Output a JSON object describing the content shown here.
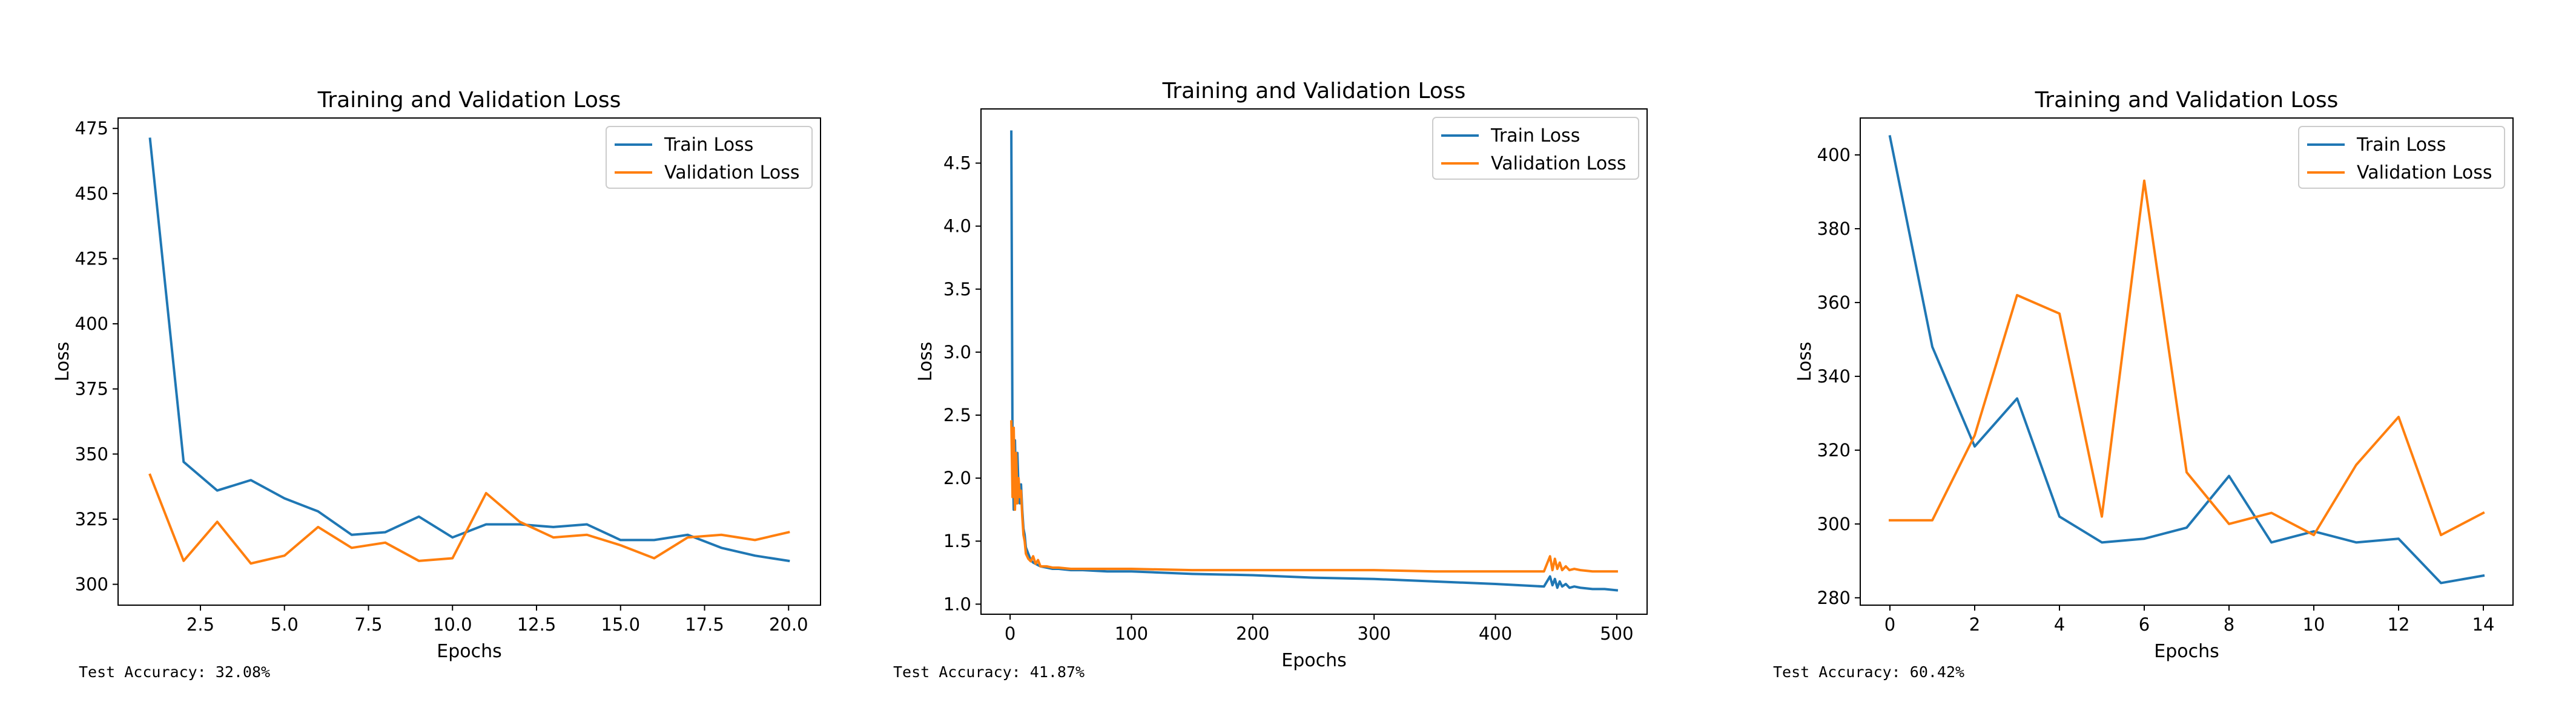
{
  "chart_data": [
    {
      "type": "line",
      "title": "Training and Validation Loss",
      "xlabel": "Epochs",
      "ylabel": "Loss",
      "xlim": [
        0.05,
        20.95
      ],
      "ylim": [
        292,
        479
      ],
      "xticks": [
        2.5,
        5.0,
        7.5,
        10.0,
        12.5,
        15.0,
        17.5,
        20.0
      ],
      "xtick_labels": [
        "2.5",
        "5.0",
        "7.5",
        "10.0",
        "12.5",
        "15.0",
        "17.5",
        "20.0"
      ],
      "yticks": [
        300,
        325,
        350,
        375,
        400,
        425,
        450,
        475
      ],
      "ytick_labels": [
        "300",
        "325",
        "350",
        "375",
        "400",
        "425",
        "450",
        "475"
      ],
      "grid": false,
      "legend_position": "top-right",
      "x": [
        1,
        2,
        3,
        4,
        5,
        6,
        7,
        8,
        9,
        10,
        11,
        12,
        13,
        14,
        15,
        16,
        17,
        18,
        19,
        20
      ],
      "series": [
        {
          "name": "Train Loss",
          "color": "#1f77b4",
          "values": [
            471,
            347,
            336,
            340,
            333,
            328,
            319,
            320,
            326,
            318,
            323,
            323,
            322,
            323,
            317,
            317,
            319,
            314,
            311,
            309
          ]
        },
        {
          "name": "Validation Loss",
          "color": "#ff7f0e",
          "values": [
            342,
            309,
            324,
            308,
            311,
            322,
            314,
            316,
            309,
            310,
            335,
            324,
            318,
            319,
            315,
            310,
            318,
            319,
            317,
            320
          ]
        }
      ],
      "annotation": "Test Accuracy: 32.08%"
    },
    {
      "type": "line",
      "title": "Training and Validation Loss",
      "xlabel": "Epochs",
      "ylabel": "Loss",
      "xlim": [
        -24,
        525
      ],
      "ylim": [
        0.92,
        4.93
      ],
      "xticks": [
        0,
        100,
        200,
        300,
        400,
        500
      ],
      "xtick_labels": [
        "0",
        "100",
        "200",
        "300",
        "400",
        "500"
      ],
      "yticks": [
        1.0,
        1.5,
        2.0,
        2.5,
        3.0,
        3.5,
        4.0,
        4.5
      ],
      "ytick_labels": [
        "1.0",
        "1.5",
        "2.0",
        "2.5",
        "3.0",
        "3.5",
        "4.0",
        "4.5"
      ],
      "grid": false,
      "legend_position": "top-right",
      "series": [
        {
          "name": "Train Loss",
          "color": "#1f77b4",
          "x": [
            1,
            2,
            3,
            4,
            5,
            6,
            7,
            8,
            9,
            10,
            11,
            12,
            13,
            15,
            17,
            19,
            21,
            23,
            25,
            30,
            35,
            40,
            50,
            60,
            80,
            100,
            150,
            200,
            250,
            300,
            350,
            400,
            440,
            445,
            447,
            449,
            451,
            453,
            455,
            458,
            461,
            465,
            470,
            480,
            490,
            500
          ],
          "values": [
            4.75,
            2.2,
            1.75,
            2.3,
            1.8,
            2.2,
            1.9,
            1.8,
            1.95,
            1.75,
            1.6,
            1.55,
            1.45,
            1.4,
            1.35,
            1.33,
            1.32,
            1.31,
            1.3,
            1.29,
            1.28,
            1.28,
            1.27,
            1.27,
            1.26,
            1.26,
            1.24,
            1.23,
            1.21,
            1.2,
            1.18,
            1.16,
            1.14,
            1.22,
            1.15,
            1.2,
            1.13,
            1.18,
            1.14,
            1.16,
            1.13,
            1.14,
            1.13,
            1.12,
            1.12,
            1.11
          ]
        },
        {
          "name": "Validation Loss",
          "color": "#ff7f0e",
          "x": [
            1,
            2,
            3,
            4,
            5,
            6,
            7,
            8,
            9,
            10,
            11,
            12,
            13,
            15,
            17,
            19,
            21,
            23,
            25,
            30,
            35,
            40,
            50,
            60,
            80,
            100,
            150,
            200,
            250,
            300,
            350,
            400,
            440,
            445,
            447,
            449,
            451,
            453,
            455,
            458,
            461,
            465,
            470,
            480,
            490,
            500
          ],
          "values": [
            2.45,
            1.85,
            2.4,
            1.75,
            2.2,
            1.8,
            2.0,
            1.85,
            1.9,
            1.7,
            1.55,
            1.5,
            1.4,
            1.36,
            1.34,
            1.38,
            1.32,
            1.35,
            1.3,
            1.3,
            1.29,
            1.29,
            1.28,
            1.28,
            1.28,
            1.28,
            1.27,
            1.27,
            1.27,
            1.27,
            1.26,
            1.26,
            1.26,
            1.38,
            1.27,
            1.36,
            1.28,
            1.33,
            1.27,
            1.3,
            1.27,
            1.28,
            1.27,
            1.26,
            1.26,
            1.26
          ]
        }
      ],
      "annotation": "Test Accuracy: 41.87%"
    },
    {
      "type": "line",
      "title": "Training and Validation Loss",
      "xlabel": "Epochs",
      "ylabel": "Loss",
      "xlim": [
        -0.7,
        14.7
      ],
      "ylim": [
        278,
        410
      ],
      "xticks": [
        0,
        2,
        4,
        6,
        8,
        10,
        12,
        14
      ],
      "xtick_labels": [
        "0",
        "2",
        "4",
        "6",
        "8",
        "10",
        "12",
        "14"
      ],
      "yticks": [
        280,
        300,
        320,
        340,
        360,
        380,
        400
      ],
      "ytick_labels": [
        "280",
        "300",
        "320",
        "340",
        "360",
        "380",
        "400"
      ],
      "grid": false,
      "legend_position": "top-right",
      "x": [
        0,
        1,
        2,
        3,
        4,
        5,
        6,
        7,
        8,
        9,
        10,
        11,
        12,
        13,
        14
      ],
      "series": [
        {
          "name": "Train Loss",
          "color": "#1f77b4",
          "values": [
            405,
            348,
            321,
            334,
            302,
            295,
            296,
            299,
            313,
            295,
            298,
            295,
            296,
            284,
            286
          ]
        },
        {
          "name": "Validation Loss",
          "color": "#ff7f0e",
          "values": [
            301,
            301,
            324,
            362,
            357,
            302,
            393,
            314,
            300,
            303,
            297,
            316,
            329,
            297,
            303
          ]
        }
      ],
      "annotation": "Test Accuracy: 60.42%"
    }
  ]
}
